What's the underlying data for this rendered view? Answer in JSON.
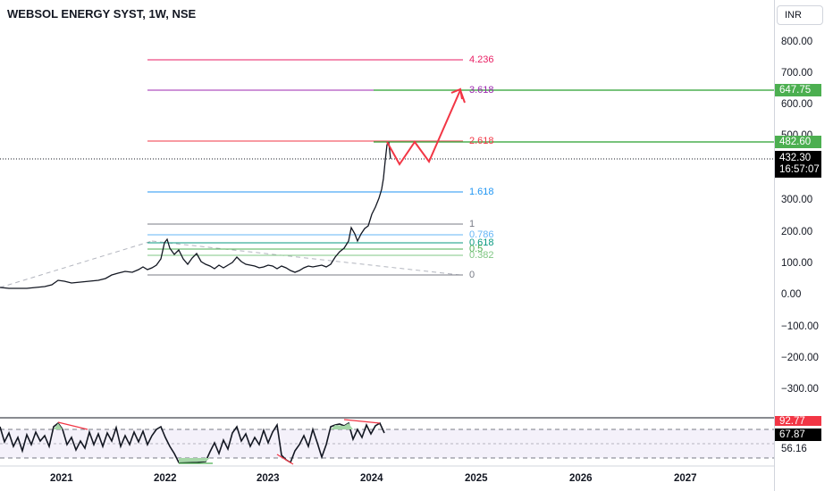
{
  "chart_title": "WEBSOL ENERGY SYST, 1W, NSE",
  "currency": "INR",
  "price_axis": [
    "800.00",
    "700.00",
    "600.00",
    "500.00",
    "300.00",
    "200.00",
    "100.00",
    "0.00",
    "−100.00",
    "−200.00",
    "−300.00"
  ],
  "time_axis": [
    "2021",
    "2022",
    "2023",
    "2024",
    "2025",
    "2026",
    "2027"
  ],
  "price_badges": {
    "target_high": "647.75",
    "target_low": "482.60",
    "last_price": "432.30",
    "countdown": "16:57:07"
  },
  "fib_levels": [
    "4.236",
    "3.618",
    "2.618",
    "1.618",
    "1",
    "0.786",
    "0.618",
    "0.5",
    "0.382",
    "0"
  ],
  "oscillator_badges": {
    "upper": "92.77",
    "value": "67.87",
    "lower": "56.16"
  },
  "colors": {
    "green_line": "#4caf50",
    "red_projection": "#f23645",
    "fib_4236": "#e91e63",
    "fib_3618": "#9c27b0",
    "fib_2618": "#f23645",
    "fib_1618": "#2196f3",
    "fib_1": "#787b86",
    "fib_0786": "#64b5f6",
    "fib_0618": "#089981",
    "fib_05": "#4caf50",
    "fib_0382": "#81c784",
    "fib_0": "#787b86"
  }
}
